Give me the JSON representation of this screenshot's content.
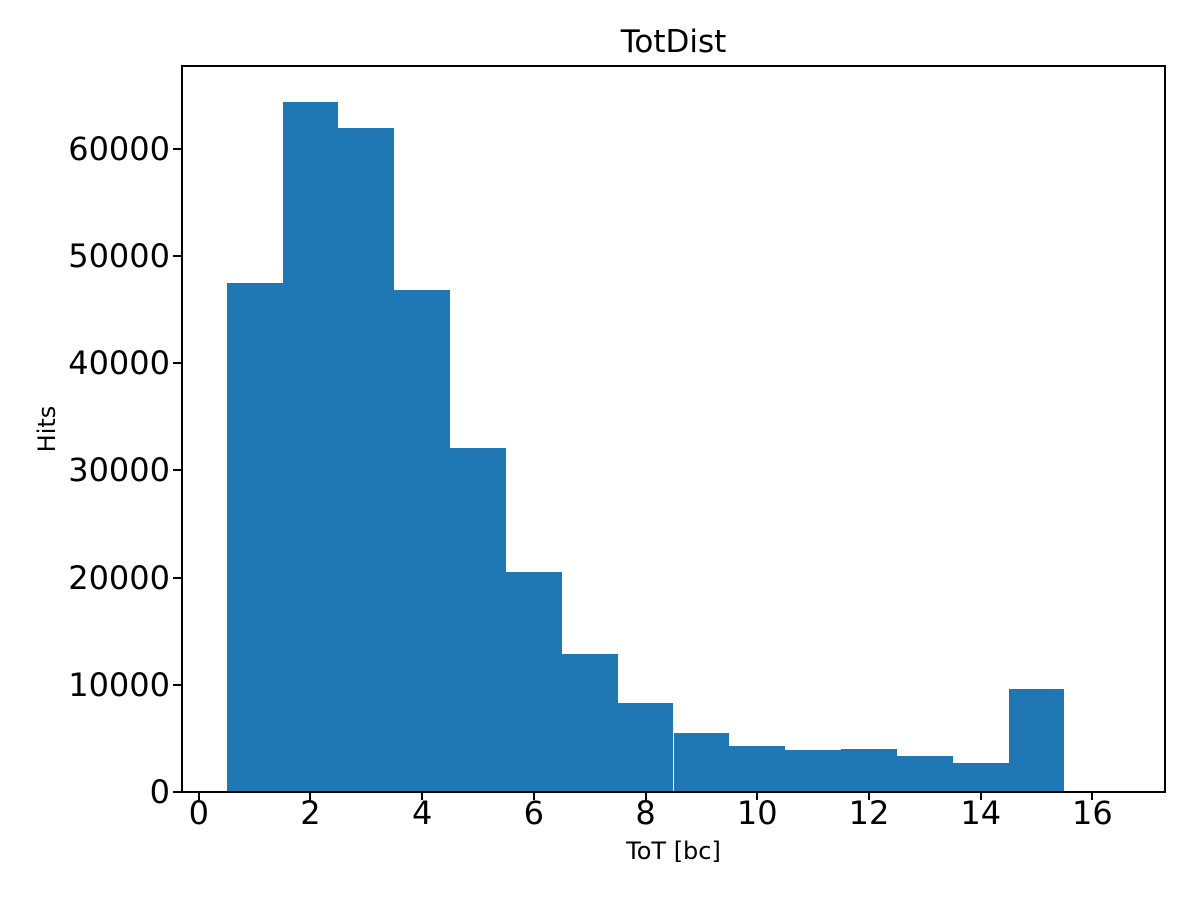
{
  "figure": {
    "background_color": "#ffffff",
    "text_color": "#000000"
  },
  "chart_data": {
    "type": "bar",
    "subtype": "histogram",
    "title": "TotDist",
    "xlabel": "ToT [bc]",
    "ylabel": "Hits",
    "bar_color": "#1f77b4",
    "bin_edges": [
      0.5,
      1.5,
      2.5,
      3.5,
      4.5,
      5.5,
      6.5,
      7.5,
      8.5,
      9.5,
      10.5,
      11.5,
      12.5,
      13.5,
      14.5,
      15.5
    ],
    "bin_centers": [
      1,
      2,
      3,
      4,
      5,
      6,
      7,
      8,
      9,
      10,
      11,
      12,
      13,
      14,
      15
    ],
    "values": [
      47500,
      64300,
      61900,
      46800,
      32100,
      20500,
      12900,
      8300,
      5500,
      4300,
      3900,
      4000,
      3400,
      2700,
      9600
    ],
    "xlim": [
      -0.3,
      17.3
    ],
    "ylim": [
      0,
      67700
    ],
    "xticks": [
      0,
      2,
      4,
      6,
      8,
      10,
      12,
      14,
      16
    ],
    "yticks": [
      0,
      10000,
      20000,
      30000,
      40000,
      50000,
      60000
    ],
    "grid": false,
    "legend": null
  }
}
